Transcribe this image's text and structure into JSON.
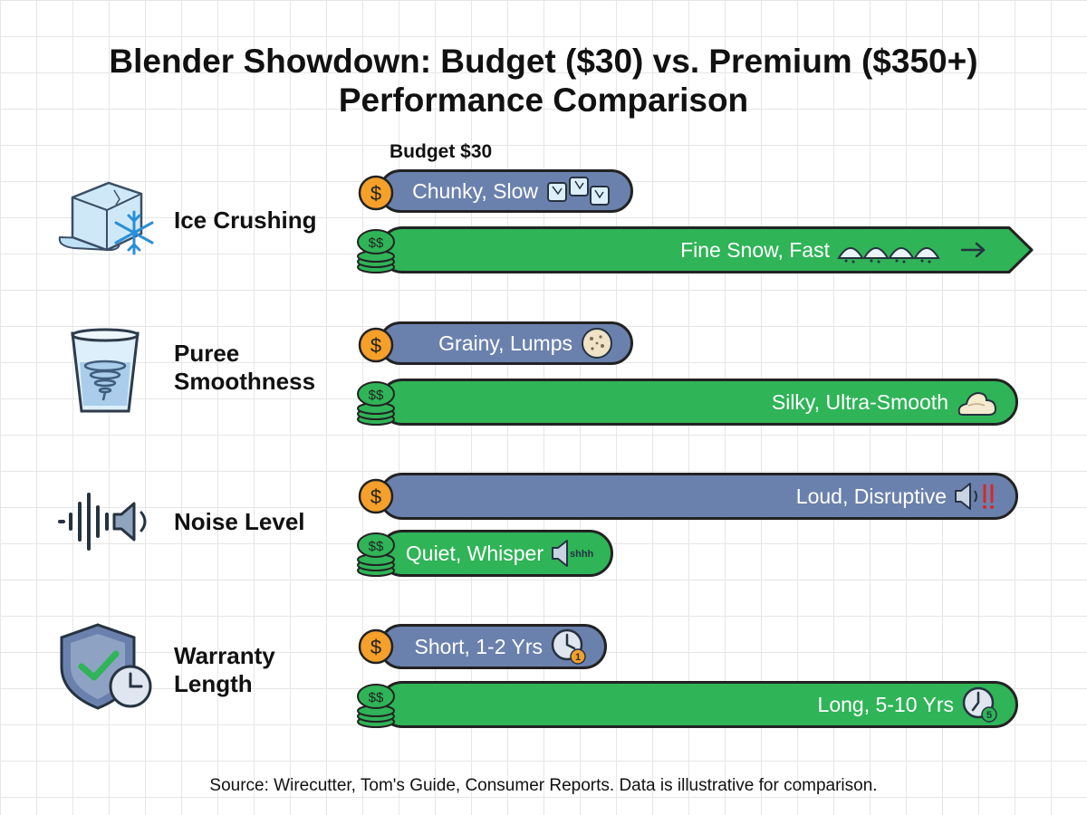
{
  "title": {
    "line1": "Blender Showdown: Budget ($30) vs. Premium ($350+)",
    "line2": "Performance Comparison"
  },
  "budget_header": "Budget $30",
  "source": "Source: Wirecutter, Tom's Guide, Consumer Reports. Data is illustrative for comparison.",
  "colors": {
    "budget": "#6b81ad",
    "premium": "#2fb457",
    "coin": "#f5a02a",
    "outline": "#222222"
  },
  "chart_data": {
    "type": "bar",
    "orientation": "horizontal",
    "categories": [
      {
        "name": "Ice Crushing",
        "lines": [
          "Ice Crushing"
        ],
        "icon": "ice-cube-icon"
      },
      {
        "name": "Puree Smoothness",
        "lines": [
          "Puree",
          "Smoothness"
        ],
        "icon": "vortex-cup-icon"
      },
      {
        "name": "Noise Level",
        "lines": [
          "Noise Level"
        ],
        "icon": "sound-wave-icon"
      },
      {
        "name": "Warranty Length",
        "lines": [
          "Warranty",
          "Length"
        ],
        "icon": "shield-clock-icon"
      }
    ],
    "series": [
      {
        "name": "Budget $30",
        "icon": "single-coin-icon",
        "values": [
          0.39,
          0.39,
          0.98,
          0.35
        ],
        "labels": [
          "Chunky, Slow",
          "Grainy, Lumps",
          "Loud, Disruptive",
          "Short, 1-2 Yrs"
        ],
        "label_icons": [
          "ice-cubes-icon",
          "lumpy-ball-icon",
          "loud-speaker-icon",
          "clock-one-icon"
        ]
      },
      {
        "name": "Premium $350+",
        "icon": "coin-stack-icon",
        "values": [
          1.0,
          0.98,
          0.36,
          0.98
        ],
        "labels": [
          "Fine Snow, Fast",
          "Silky, Ultra-Smooth",
          "Quiet, Whisper",
          "Long, 5-10 Yrs"
        ],
        "label_icons": [
          "snow-mounds-icon",
          "cream-swirl-icon",
          "quiet-speaker-icon",
          "clock-five-icon"
        ]
      }
    ],
    "annotations": {
      "quiet_speaker_text": "shhh",
      "budget_warranty_badge": "1",
      "premium_warranty_badge": "5"
    }
  }
}
